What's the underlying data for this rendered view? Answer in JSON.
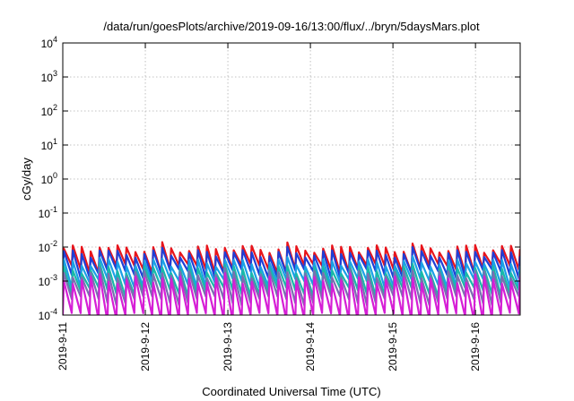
{
  "chart_data": {
    "type": "line",
    "title": "/data/run/goesPlots/archive/2019-09-16/13:00/flux/../bryn/5daysMars.plot",
    "xlabel": "Coordinated Universal Time (UTC)",
    "ylabel": "cGy/day",
    "y_scale": "log",
    "ylim": [
      0.0001,
      10000
    ],
    "xlim": [
      "2019-09-11T00:00",
      "2019-09-16T13:00"
    ],
    "y_ticks": [
      {
        "value": 0.0001,
        "base": "10",
        "exp": "-4"
      },
      {
        "value": 0.001,
        "base": "10",
        "exp": "-3"
      },
      {
        "value": 0.01,
        "base": "10",
        "exp": "-2"
      },
      {
        "value": 0.1,
        "base": "10",
        "exp": "-1"
      },
      {
        "value": 1,
        "base": "10",
        "exp": "0"
      },
      {
        "value": 10,
        "base": "10",
        "exp": "1"
      },
      {
        "value": 100,
        "base": "10",
        "exp": "2"
      },
      {
        "value": 1000,
        "base": "10",
        "exp": "3"
      },
      {
        "value": 10000,
        "base": "10",
        "exp": "4"
      }
    ],
    "x_ticks": [
      {
        "value": "2019-09-11T00:00",
        "label": "2019-9-11"
      },
      {
        "value": "2019-09-12T00:00",
        "label": "2019-9-12"
      },
      {
        "value": "2019-09-13T00:00",
        "label": "2019-9-13"
      },
      {
        "value": "2019-09-14T00:00",
        "label": "2019-9-14"
      },
      {
        "value": "2019-09-15T00:00",
        "label": "2019-9-15"
      },
      {
        "value": "2019-09-16T00:00",
        "label": "2019-9-16"
      }
    ],
    "grid": true,
    "legend": "none",
    "pattern": "sawtooth",
    "cycle_hours": 2.6,
    "series": [
      {
        "color": "#e8141b",
        "peak": 0.009,
        "trough": 0.0024
      },
      {
        "color": "#1f3fd6",
        "peak": 0.0065,
        "trough": 0.0017
      },
      {
        "color": "#1aa0e6",
        "peak": 0.0035,
        "trough": 0.0009
      },
      {
        "color": "#19b9a8",
        "peak": 0.0022,
        "trough": 0.0005
      },
      {
        "color": "#7a6fb0",
        "peak": 0.0016,
        "trough": 0.00028
      },
      {
        "color": "#d61ed6",
        "peak": 0.0011,
        "trough": 9e-05
      }
    ]
  }
}
